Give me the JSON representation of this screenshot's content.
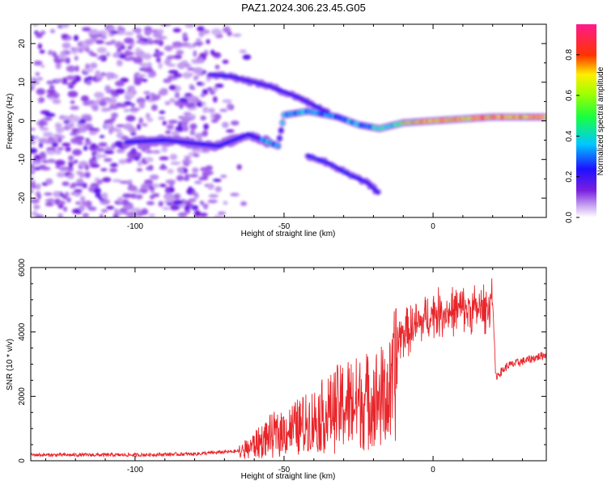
{
  "title": "PAZ1.2024.306.23.45.G05",
  "chart_data": [
    {
      "type": "heatmap",
      "xlabel": "Height of straight line (km)",
      "ylabel": "Frequency (Hz)",
      "xlim": [
        -135,
        38
      ],
      "ylim": [
        -25,
        25
      ],
      "x_ticks": [
        -100,
        -50,
        0
      ],
      "x_tick_labels": [
        "-100",
        "-50",
        "0"
      ],
      "y_ticks": [
        20,
        10,
        0,
        -10,
        -20
      ],
      "y_tick_labels": [
        "20",
        "10",
        "0",
        "-10",
        "-20"
      ],
      "colorbar": {
        "label": "Normalized spectral amplitude",
        "range": [
          0,
          0.95
        ],
        "ticks": [
          0.0,
          0.2,
          0.4,
          0.6,
          0.8
        ],
        "tick_labels": [
          "0.0",
          "0.2",
          "0.4",
          "0.6",
          "0.8"
        ],
        "colormap": "rainbow (white-purple-blue-cyan-green-yellow-red-magenta)"
      },
      "features": {
        "main_trace": [
          [
            -103,
            -5.5
          ],
          [
            -90,
            -5
          ],
          [
            -72,
            -6.5
          ],
          [
            -62,
            -3.5
          ],
          [
            -52,
            -6.5
          ],
          [
            -50,
            1.5
          ],
          [
            -42,
            2.5
          ],
          [
            -32,
            1
          ],
          [
            -25,
            -1
          ],
          [
            -18,
            -2
          ],
          [
            -10,
            -0.5
          ],
          [
            0,
            0
          ],
          [
            10,
            0.5
          ],
          [
            20,
            1
          ],
          [
            38,
            1
          ]
        ],
        "upper_branch": [
          [
            -75,
            12
          ],
          [
            -68,
            11.5
          ],
          [
            -55,
            9
          ],
          [
            -45,
            6
          ],
          [
            -35,
            2
          ]
        ],
        "lower_branch": [
          [
            -42,
            -9
          ],
          [
            -35,
            -11
          ],
          [
            -28,
            -14
          ],
          [
            -22,
            -16
          ],
          [
            -18,
            -19
          ]
        ],
        "noise_region_x": [
          -135,
          -60
        ]
      }
    },
    {
      "type": "line",
      "xlabel": "Height of straight line (km)",
      "ylabel": "SNR (10 * v/v)",
      "xlim": [
        -135,
        38
      ],
      "ylim": [
        0,
        6000
      ],
      "x_ticks": [
        -100,
        -50,
        0
      ],
      "x_tick_labels": [
        "-100",
        "-50",
        "0"
      ],
      "y_ticks": [
        0,
        2000,
        4000,
        6000
      ],
      "y_tick_labels": [
        "0",
        "2000",
        "4000",
        "6000"
      ],
      "grid": false,
      "color": "#e8252a",
      "series_profile": [
        [
          -135,
          180
        ],
        [
          -100,
          180
        ],
        [
          -80,
          210
        ],
        [
          -65,
          300
        ],
        [
          -55,
          900
        ],
        [
          -40,
          1500
        ],
        [
          -30,
          2100
        ],
        [
          -20,
          2300
        ],
        [
          -14,
          2500
        ],
        [
          -12,
          3800
        ],
        [
          -5,
          4200
        ],
        [
          0,
          4600
        ],
        [
          5,
          4600
        ],
        [
          10,
          4700
        ],
        [
          18,
          4700
        ],
        [
          20,
          5100
        ],
        [
          21,
          2600
        ],
        [
          25,
          2950
        ],
        [
          38,
          3300
        ]
      ]
    }
  ]
}
